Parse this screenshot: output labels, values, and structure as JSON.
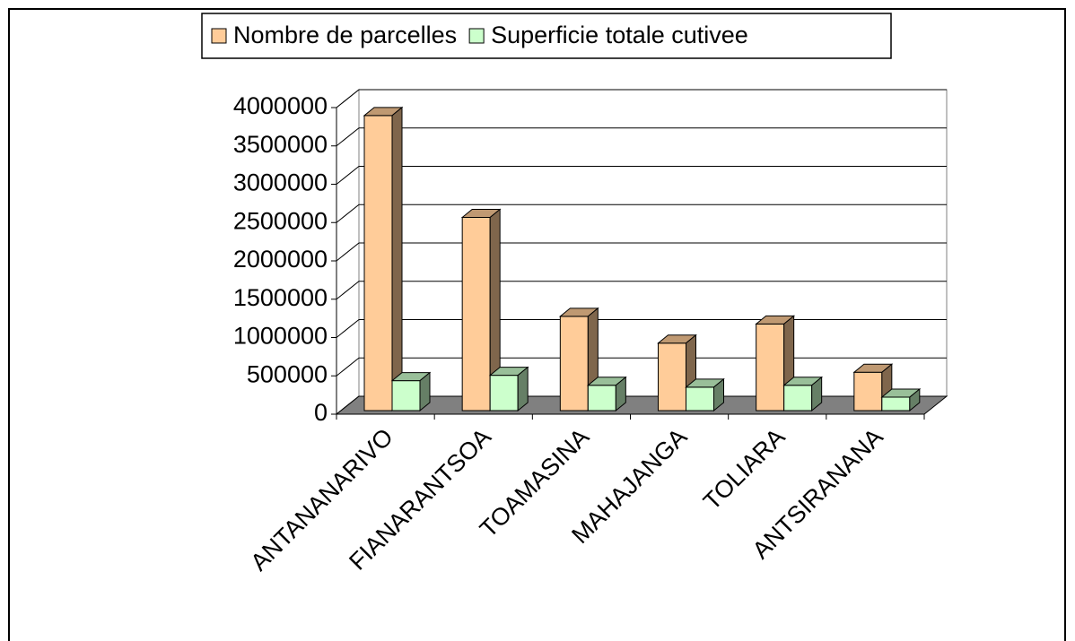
{
  "chart_data": {
    "type": "bar3d",
    "categories": [
      "ANTANANARIVO",
      "FIANARANTSOA",
      "TOAMASINA",
      "MAHAJANGA",
      "TOLIARA",
      "ANTSIRANANA"
    ],
    "series": [
      {
        "name": "Nombre de parcelles",
        "color": "#ffcc99",
        "values": [
          3850000,
          2520000,
          1230000,
          880000,
          1130000,
          500000
        ]
      },
      {
        "name": "Superficie totale cutivee",
        "color": "#ccffcc",
        "values": [
          390000,
          460000,
          330000,
          305000,
          330000,
          175000
        ]
      }
    ],
    "ylim": [
      0,
      4000000
    ],
    "yticks": [
      0,
      500000,
      1000000,
      1500000,
      2000000,
      2500000,
      3000000,
      3500000,
      4000000
    ],
    "grid": true,
    "legend": "top"
  }
}
